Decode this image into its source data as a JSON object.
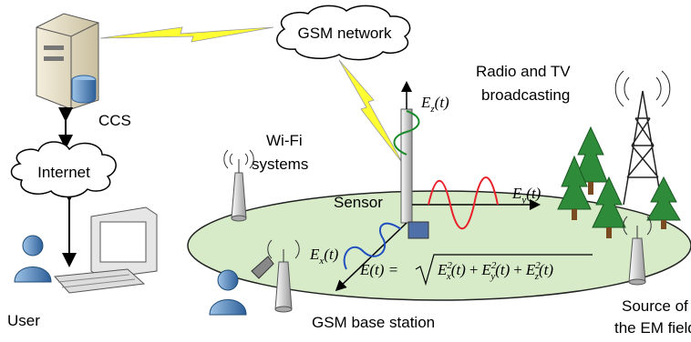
{
  "labels": {
    "gsm_network": "GSM network",
    "ccs": "CCS",
    "internet": "Internet",
    "user": "User",
    "broadcasting": [
      "Radio and TV",
      "broadcasting"
    ],
    "wifi": [
      "Wi-Fi",
      "systems"
    ],
    "sensor": "Sensor",
    "base_station": "GSM base station",
    "source": [
      "Source of",
      "the EM field"
    ]
  },
  "field_components": [
    {
      "symbol": "E",
      "sub": "z",
      "arg": "(t)"
    },
    {
      "symbol": "E",
      "sub": "y",
      "arg": "(t)"
    },
    {
      "symbol": "E",
      "sub": "x",
      "arg": "(t)"
    }
  ],
  "formula": {
    "lhs": "E(t) =",
    "terms": [
      {
        "base": "E",
        "sup": "2",
        "sub": "x",
        "arg": "(t)"
      },
      {
        "base": "E",
        "sup": "2",
        "sub": "y",
        "arg": "(t)"
      },
      {
        "base": "E",
        "sup": "2",
        "sub": "z",
        "arg": "(t)"
      }
    ],
    "ops": [
      "+",
      "+"
    ]
  }
}
